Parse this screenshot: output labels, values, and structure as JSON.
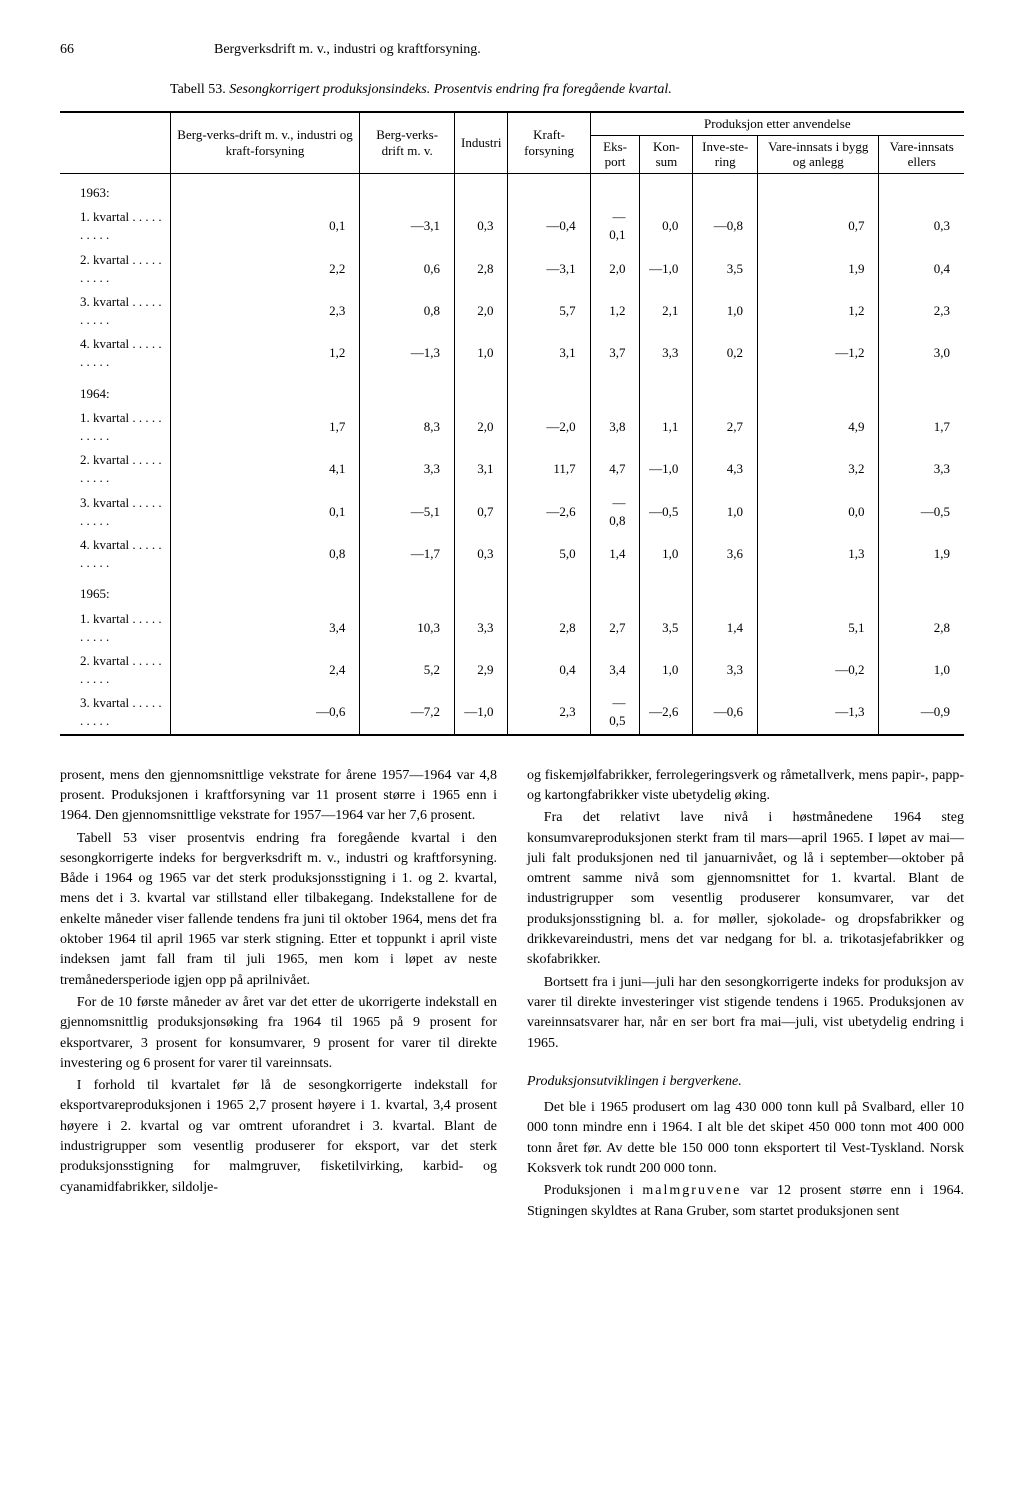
{
  "page": {
    "number": "66",
    "title": "Bergverksdrift m. v., industri og kraftforsyning."
  },
  "table": {
    "caption_label": "Tabell 53.",
    "caption_desc": "Sesongkorrigert produksjonsindeks. Prosentvis endring fra foregående kvartal.",
    "headers": {
      "col1": "Berg-verks-drift m. v., industri og kraft-forsyning",
      "col2": "Berg-verks-drift m. v.",
      "col3": "Industri",
      "col4": "Kraft-forsyning",
      "group": "Produksjon etter anvendelse",
      "col5": "Eks-port",
      "col6": "Kon-sum",
      "col7": "Inve-ste-ring",
      "col8": "Vare-innsats i bygg og anlegg",
      "col9": "Vare-innsats ellers"
    },
    "groups": [
      {
        "year": "1963:",
        "rows": [
          {
            "label": "1. kvartal . . . . . . . . . .",
            "v": [
              "0,1",
              "—3,1",
              "0,3",
              "—0,4",
              "—0,1",
              "0,0",
              "—0,8",
              "0,7",
              "0,3"
            ]
          },
          {
            "label": "2. kvartal . . . . . . . . . .",
            "v": [
              "2,2",
              "0,6",
              "2,8",
              "—3,1",
              "2,0",
              "—1,0",
              "3,5",
              "1,9",
              "0,4"
            ]
          },
          {
            "label": "3. kvartal . . . . . . . . . .",
            "v": [
              "2,3",
              "0,8",
              "2,0",
              "5,7",
              "1,2",
              "2,1",
              "1,0",
              "1,2",
              "2,3"
            ]
          },
          {
            "label": "4. kvartal . . . . . . . . . .",
            "v": [
              "1,2",
              "—1,3",
              "1,0",
              "3,1",
              "3,7",
              "3,3",
              "0,2",
              "—1,2",
              "3,0"
            ]
          }
        ]
      },
      {
        "year": "1964:",
        "rows": [
          {
            "label": "1. kvartal . . . . . . . . . .",
            "v": [
              "1,7",
              "8,3",
              "2,0",
              "—2,0",
              "3,8",
              "1,1",
              "2,7",
              "4,9",
              "1,7"
            ]
          },
          {
            "label": "2. kvartal . . . . . . . . . .",
            "v": [
              "4,1",
              "3,3",
              "3,1",
              "11,7",
              "4,7",
              "—1,0",
              "4,3",
              "3,2",
              "3,3"
            ]
          },
          {
            "label": "3. kvartal . . . . . . . . . .",
            "v": [
              "0,1",
              "—5,1",
              "0,7",
              "—2,6",
              "—0,8",
              "—0,5",
              "1,0",
              "0,0",
              "—0,5"
            ]
          },
          {
            "label": "4. kvartal . . . . . . . . . .",
            "v": [
              "0,8",
              "—1,7",
              "0,3",
              "5,0",
              "1,4",
              "1,0",
              "3,6",
              "1,3",
              "1,9"
            ]
          }
        ]
      },
      {
        "year": "1965:",
        "rows": [
          {
            "label": "1. kvartal . . . . . . . . . .",
            "v": [
              "3,4",
              "10,3",
              "3,3",
              "2,8",
              "2,7",
              "3,5",
              "1,4",
              "5,1",
              "2,8"
            ]
          },
          {
            "label": "2. kvartal . . . . . . . . . .",
            "v": [
              "2,4",
              "5,2",
              "2,9",
              "0,4",
              "3,4",
              "1,0",
              "3,3",
              "—0,2",
              "1,0"
            ]
          },
          {
            "label": "3. kvartal . . . . . . . . . .",
            "v": [
              "—0,6",
              "—7,2",
              "—1,0",
              "2,3",
              "—0,5",
              "—2,6",
              "—0,6",
              "—1,3",
              "—0,9"
            ]
          }
        ]
      }
    ]
  },
  "text": {
    "left": {
      "p1": "prosent, mens den gjennomsnittlige vekstrate for årene 1957—1964 var 4,8 prosent. Produksjonen i kraftforsyning var 11 prosent større i 1965 enn i 1964. Den gjennomsnittlige vekstrate for 1957—1964 var her 7,6 prosent.",
      "p2": "Tabell 53 viser prosentvis endring fra foregående kvartal i den sesongkorrigerte indeks for bergverksdrift m. v., industri og kraftforsyning. Både i 1964 og 1965 var det sterk produksjonsstigning i 1. og 2. kvartal, mens det i 3. kvartal var stillstand eller tilbakegang. Indekstallene for de enkelte måneder viser fallende tendens fra juni til oktober 1964, mens det fra oktober 1964 til april 1965 var sterk stigning. Etter et toppunkt i april viste indeksen jamt fall fram til juli 1965, men kom i løpet av neste tremånedersperiode igjen opp på aprilnivået.",
      "p3": "For de 10 første måneder av året var det etter de ukorrigerte indekstall en gjennomsnittlig produksjonsøking fra 1964 til 1965 på 9 prosent for eksportvarer, 3 prosent for konsumvarer, 9 prosent for varer til direkte investering og 6 prosent for varer til vareinnsats.",
      "p4": "I forhold til kvartalet før lå de sesongkorrigerte indekstall for eksportvareproduksjonen i 1965 2,7 prosent høyere i 1. kvartal, 3,4 prosent høyere i 2. kvartal og var omtrent uforandret i 3. kvartal. Blant de industrigrupper som vesentlig produserer for eksport, var det sterk produksjonsstigning for malmgruver, fisketilvirking, karbid- og cyanamidfabrikker, sildolje-"
    },
    "right": {
      "p1": "og fiskemjølfabrikker, ferrolegeringsverk og råmetallverk, mens papir-, papp- og kartongfabrikker viste ubetydelig øking.",
      "p2": "Fra det relativt lave nivå i høstmånedene 1964 steg konsumvareproduksjonen sterkt fram til mars—april 1965. I løpet av mai—juli falt produksjonen ned til januarnivået, og lå i september—oktober på omtrent samme nivå som gjennomsnittet for 1. kvartal. Blant de industrigrupper som vesentlig produserer konsumvarer, var det produksjonsstigning bl. a. for møller, sjokolade- og dropsfabrikker og drikkevareindustri, mens det var nedgang for bl. a. trikotasjefabrikker og skofabrikker.",
      "p3": "Bortsett fra i juni—juli har den sesongkorrigerte indeks for produksjon av varer til direkte investeringer vist stigende tendens i 1965. Produksjonen av vareinnsatsvarer har, når en ser bort fra mai—juli, vist ubetydelig endring i 1965.",
      "heading": "Produksjonsutviklingen i bergverkene.",
      "p4": "Det ble i 1965 produsert om lag 430 000 tonn kull på Svalbard, eller 10 000 tonn mindre enn i 1964. I alt ble det skipet 450 000 tonn mot 400 000 tonn året før. Av dette ble 150 000 tonn eksportert til Vest-Tyskland. Norsk Koksverk tok rundt 200 000 tonn.",
      "p5a": "Produksjonen i ",
      "p5b": "malmgruvene",
      "p5c": " var 12 prosent større enn i 1964. Stigningen skyldtes at Rana Gruber, som startet produksjonen sent"
    }
  }
}
